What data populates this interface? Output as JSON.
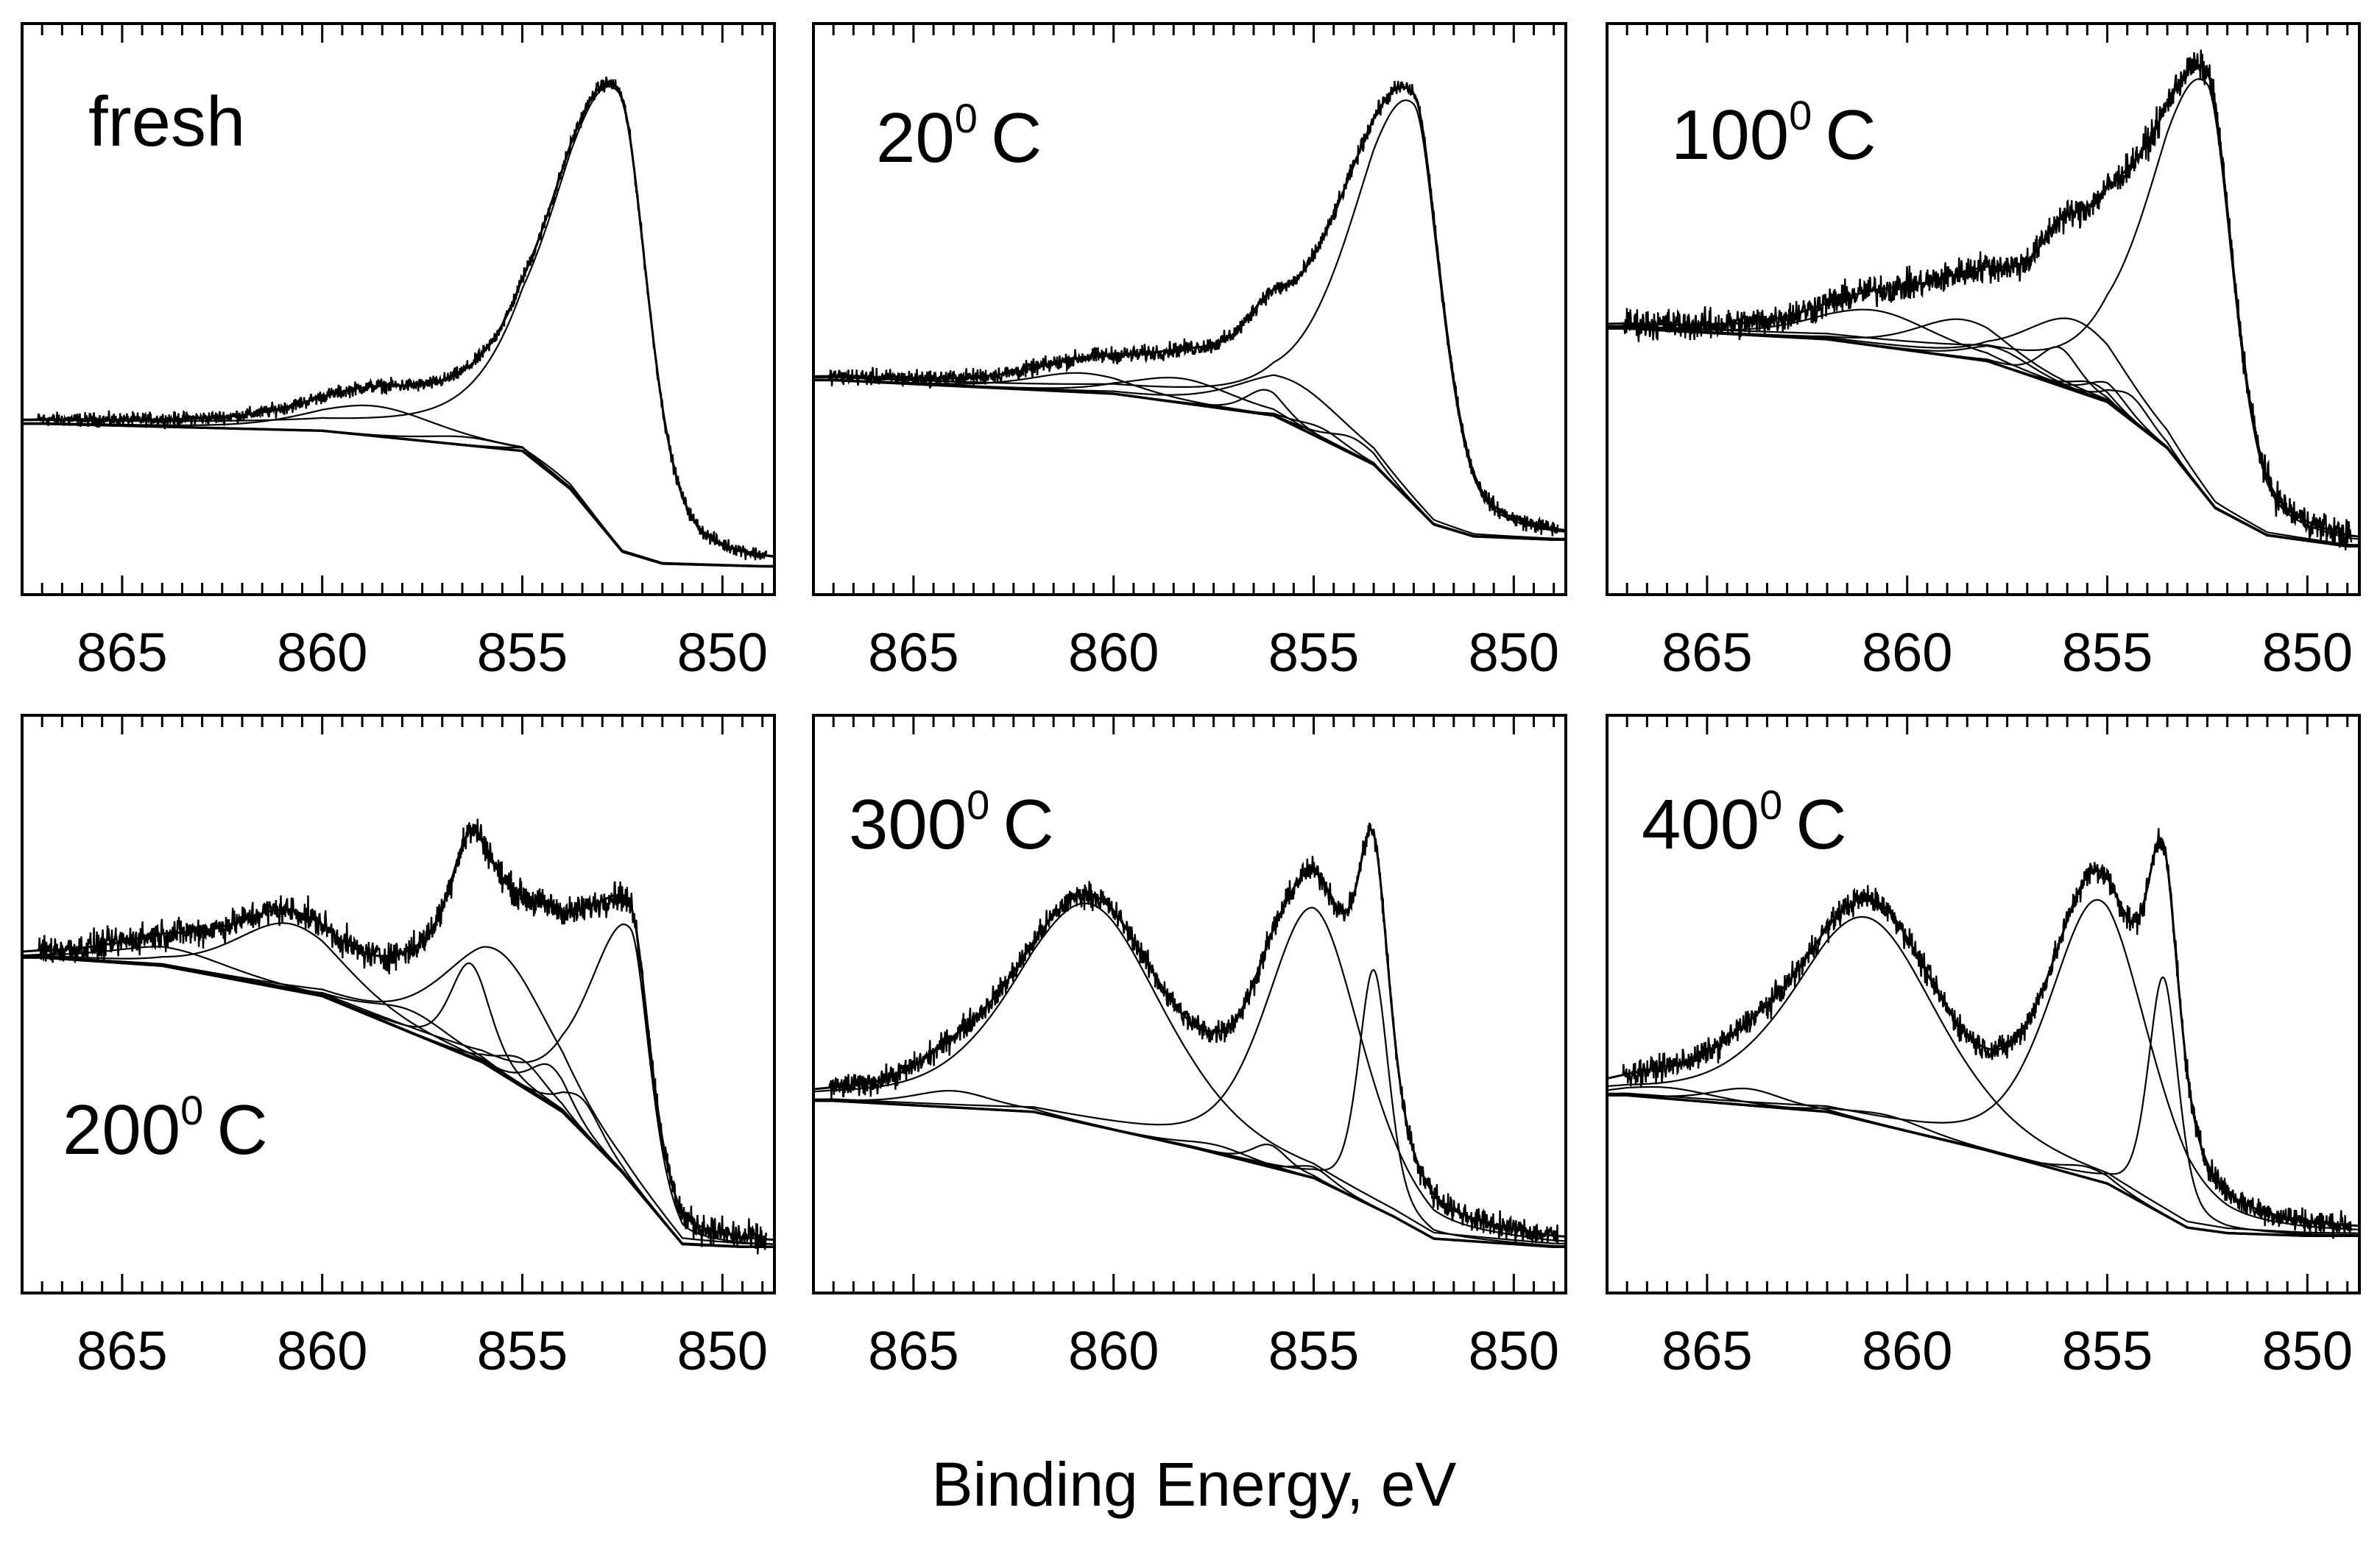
{
  "figure": {
    "xlabel": "Binding Energy, eV",
    "colors": {
      "axes": "#000000",
      "spectrum": "#000000",
      "background": "#ffffff"
    }
  },
  "chart_data": [
    {
      "type": "line",
      "title": "fresh",
      "xlabel": "Binding Energy, eV",
      "ylabel": "",
      "xlim": [
        867.5,
        848.7
      ],
      "x_ticks": [
        865,
        860,
        855,
        850
      ],
      "x_tick_labels": [
        "865",
        "860",
        "855",
        "850"
      ],
      "ylim": [
        0,
        100
      ],
      "baseline": [
        [
          867,
          29.5
        ],
        [
          860,
          28.2
        ],
        [
          855,
          24.5
        ],
        [
          853.8,
          17.5
        ],
        [
          852.5,
          6
        ],
        [
          851.5,
          3.8
        ],
        [
          849,
          3.3
        ]
      ],
      "components": [
        {
          "center": 852.6,
          "height": 83.5,
          "width": 0.85,
          "shape": "asymmetric"
        },
        {
          "center": 858.7,
          "height": 5.5,
          "width": 1.6,
          "shape": "gaussian"
        },
        {
          "center": 856.4,
          "height": 1.5,
          "width": 1.0,
          "shape": "gaussian"
        },
        {
          "center": 854.2,
          "height": 1.0,
          "width": 0.8,
          "shape": "gaussian"
        }
      ],
      "noise": 1.1
    },
    {
      "type": "line",
      "title": "20",
      "title_sup": "0",
      "title_unit": "C",
      "xlabel": "Binding Energy, eV",
      "ylabel": "",
      "xlim": [
        867.5,
        848.7
      ],
      "x_ticks": [
        865,
        860,
        855,
        850
      ],
      "x_tick_labels": [
        "865",
        "860",
        "855",
        "850"
      ],
      "ylim": [
        0,
        100
      ],
      "baseline": [
        [
          867,
          37.5
        ],
        [
          860,
          35
        ],
        [
          856,
          31
        ],
        [
          853.5,
          22
        ],
        [
          852,
          11
        ],
        [
          851,
          8.8
        ],
        [
          849,
          8.2
        ]
      ],
      "components": [
        {
          "center": 852.5,
          "height": 73.5,
          "width": 0.8,
          "shape": "asymmetric"
        },
        {
          "center": 855.5,
          "height": 8,
          "width": 1.4,
          "shape": "gaussian"
        },
        {
          "center": 856.2,
          "height": 4.5,
          "width": 0.5,
          "shape": "gaussian"
        },
        {
          "center": 858.3,
          "height": 4.5,
          "width": 1.3,
          "shape": "gaussian"
        },
        {
          "center": 860.8,
          "height": 3.5,
          "width": 1.3,
          "shape": "gaussian"
        },
        {
          "center": 854.0,
          "height": 3,
          "width": 0.6,
          "shape": "gaussian"
        },
        {
          "center": 854.8,
          "height": 2,
          "width": 0.6,
          "shape": "gaussian"
        }
      ],
      "noise": 1.3
    },
    {
      "type": "line",
      "title": "100",
      "title_sup": "0",
      "title_unit": "C",
      "xlabel": "Binding Energy, eV",
      "ylabel": "",
      "xlim": [
        867.5,
        848.7
      ],
      "x_ticks": [
        865,
        860,
        855,
        850
      ],
      "x_tick_labels": [
        "865",
        "860",
        "855",
        "850"
      ],
      "ylim": [
        0,
        100
      ],
      "baseline": [
        [
          867,
          47
        ],
        [
          862,
          45
        ],
        [
          858,
          41
        ],
        [
          855,
          33.5
        ],
        [
          853.5,
          25
        ],
        [
          852.3,
          14
        ],
        [
          851,
          9
        ],
        [
          849,
          7
        ]
      ],
      "components": [
        {
          "center": 852.5,
          "height": 76,
          "width": 0.75,
          "shape": "asymmetric"
        },
        {
          "center": 855.8,
          "height": 13,
          "width": 1.3,
          "shape": "gaussian"
        },
        {
          "center": 856.2,
          "height": 7,
          "width": 0.5,
          "shape": "gaussian"
        },
        {
          "center": 858.6,
          "height": 7,
          "width": 1.2,
          "shape": "gaussian"
        },
        {
          "center": 860.8,
          "height": 6.5,
          "width": 1.5,
          "shape": "gaussian"
        },
        {
          "center": 857.7,
          "height": 3,
          "width": 0.8,
          "shape": "gaussian"
        },
        {
          "center": 855.0,
          "height": 3.5,
          "width": 0.5,
          "shape": "gaussian"
        },
        {
          "center": 854.4,
          "height": 4.5,
          "width": 0.5,
          "shape": "gaussian"
        },
        {
          "center": 855.4,
          "height": 2.5,
          "width": 0.5,
          "shape": "gaussian"
        }
      ],
      "noise": 2.4
    },
    {
      "type": "line",
      "title": "200",
      "title_sup": "0",
      "title_unit": "C",
      "xlabel": "Binding Energy, eV",
      "ylabel": "",
      "xlim": [
        867.5,
        848.7
      ],
      "x_ticks": [
        865,
        860,
        855,
        850
      ],
      "x_tick_labels": [
        "865",
        "860",
        "855",
        "850"
      ],
      "ylim": [
        0,
        100
      ],
      "baseline": [
        [
          867,
          59
        ],
        [
          864,
          57.5
        ],
        [
          860,
          52
        ],
        [
          856,
          40
        ],
        [
          854,
          31
        ],
        [
          852.5,
          20
        ],
        [
          851,
          7
        ],
        [
          849.5,
          6.5
        ]
      ],
      "components": [
        {
          "center": 852.3,
          "height": 46,
          "width": 0.55,
          "shape": "asymmetric"
        },
        {
          "center": 855.6,
          "height": 22,
          "width": 1.35,
          "shape": "gaussian"
        },
        {
          "center": 856.3,
          "height": 17,
          "width": 0.5,
          "shape": "gaussian"
        },
        {
          "center": 860.8,
          "height": 12,
          "width": 1.4,
          "shape": "gaussian"
        },
        {
          "center": 863.8,
          "height": 3.5,
          "width": 1.5,
          "shape": "gaussian"
        },
        {
          "center": 857.8,
          "height": 4,
          "width": 1.0,
          "shape": "gaussian"
        },
        {
          "center": 855.0,
          "height": 5,
          "width": 0.6,
          "shape": "gaussian"
        },
        {
          "center": 854.3,
          "height": 7,
          "width": 0.5,
          "shape": "gaussian"
        },
        {
          "center": 853.5,
          "height": 6,
          "width": 0.5,
          "shape": "gaussian"
        }
      ],
      "noise": 2.3
    },
    {
      "type": "line",
      "title": "300",
      "title_sup": "0",
      "title_unit": "C",
      "xlabel": "Binding Energy, eV",
      "ylabel": "",
      "xlim": [
        867.5,
        848.7
      ],
      "x_ticks": [
        865,
        860,
        855,
        850
      ],
      "x_tick_labels": [
        "865",
        "860",
        "855",
        "850"
      ],
      "ylim": [
        0,
        100
      ],
      "baseline": [
        [
          867,
          33
        ],
        [
          862,
          31
        ],
        [
          858,
          24.5
        ],
        [
          855,
          19
        ],
        [
          853,
          12
        ],
        [
          852,
          8
        ],
        [
          850,
          7
        ],
        [
          849,
          6.5
        ]
      ],
      "components": [
        {
          "center": 860.6,
          "height": 40,
          "width": 1.85,
          "shape": "gaussian"
        },
        {
          "center": 855.0,
          "height": 49,
          "width": 1.2,
          "shape": "gaussian"
        },
        {
          "center": 853.5,
          "height": 43,
          "width": 0.38,
          "shape": "gaussian"
        },
        {
          "center": 864.0,
          "height": 3,
          "width": 1.0,
          "shape": "gaussian"
        },
        {
          "center": 856.1,
          "height": 4,
          "width": 0.45,
          "shape": "gaussian"
        },
        {
          "center": 857.4,
          "height": 1.5,
          "width": 0.8,
          "shape": "gaussian"
        },
        {
          "center": 855.0,
          "height": 2,
          "width": 0.5,
          "shape": "gaussian"
        }
      ],
      "noise": 1.9
    },
    {
      "type": "line",
      "title": "400",
      "title_sup": "0",
      "title_unit": "C",
      "xlabel": "Binding Energy, eV",
      "ylabel": "",
      "xlim": [
        867.5,
        848.7
      ],
      "x_ticks": [
        865,
        860,
        855,
        850
      ],
      "x_tick_labels": [
        "865",
        "860",
        "855",
        "850"
      ],
      "ylim": [
        0,
        100
      ],
      "baseline": [
        [
          867,
          34
        ],
        [
          862,
          31
        ],
        [
          858,
          24
        ],
        [
          855,
          18
        ],
        [
          853,
          10
        ],
        [
          852,
          9
        ],
        [
          850,
          8.5
        ]
      ],
      "components": [
        {
          "center": 861.0,
          "height": 37,
          "width": 1.8,
          "shape": "gaussian"
        },
        {
          "center": 855.2,
          "height": 51,
          "width": 1.25,
          "shape": "gaussian"
        },
        {
          "center": 853.6,
          "height": 43,
          "width": 0.38,
          "shape": "gaussian"
        },
        {
          "center": 866.0,
          "height": 2,
          "width": 1.2,
          "shape": "gaussian"
        },
        {
          "center": 864.0,
          "height": 3,
          "width": 0.9,
          "shape": "gaussian"
        },
        {
          "center": 860.5,
          "height": 2,
          "width": 1.0,
          "shape": "gaussian"
        },
        {
          "center": 855.5,
          "height": 2,
          "width": 0.6,
          "shape": "gaussian"
        }
      ],
      "noise": 2.0
    }
  ]
}
